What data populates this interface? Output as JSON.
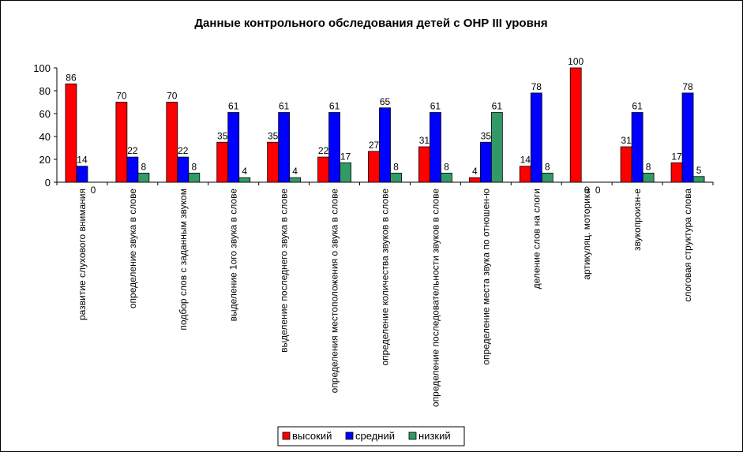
{
  "chart_data": {
    "type": "bar",
    "title": "Данные контрольного обследования детей с ОНР III уровня",
    "xlabel": "",
    "ylabel": "",
    "ylim": [
      0,
      100
    ],
    "yticks": [
      0,
      20,
      40,
      60,
      80,
      100
    ],
    "grid": false,
    "legend_position": "bottom",
    "categories": [
      "развитие слухового внимания",
      "определение звука в слове",
      "подбор слов с заданным звуком",
      "выделение 1ого звука в слове",
      "выделение последнего звука в слове",
      "определения местоположения о звука в слове",
      "определение количества звуков в слове",
      "определение последовательности звуков в слове",
      "определение места звука по отношен-ю",
      "деление слов на слоги",
      "артикуляц. моторика",
      "звукопроизн-е",
      "слоговая структура слова"
    ],
    "series": [
      {
        "name": "высокий",
        "color": "#ff0000",
        "values": [
          86,
          70,
          70,
          35,
          35,
          22,
          27,
          31,
          4,
          14,
          100,
          31,
          17
        ]
      },
      {
        "name": "средний",
        "color": "#0000ff",
        "values": [
          14,
          22,
          22,
          61,
          61,
          61,
          65,
          61,
          35,
          78,
          0,
          61,
          78
        ]
      },
      {
        "name": "низкий",
        "color": "#339966",
        "values": [
          0,
          8,
          8,
          4,
          4,
          17,
          8,
          8,
          61,
          8,
          0,
          8,
          5
        ]
      }
    ]
  }
}
